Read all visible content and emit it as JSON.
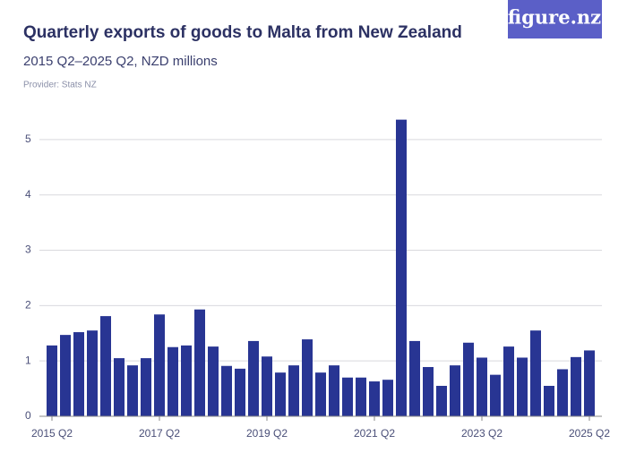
{
  "logo": "figure.nz",
  "chart_data": {
    "type": "bar",
    "title": "Quarterly exports of goods to Malta from New Zealand",
    "subtitle": "2015 Q2–2025 Q2, NZD millions",
    "provider": "Provider: Stats NZ",
    "color": "#283593",
    "grid": true,
    "ylim": [
      0,
      5.5
    ],
    "yticks": [
      0,
      1,
      2,
      3,
      4,
      5
    ],
    "categories": [
      "2015 Q2",
      null,
      null,
      null,
      null,
      null,
      null,
      null,
      "2017 Q2",
      null,
      null,
      null,
      null,
      null,
      null,
      null,
      "2019 Q2",
      null,
      null,
      null,
      null,
      null,
      null,
      null,
      "2021 Q2",
      null,
      null,
      null,
      null,
      null,
      null,
      null,
      "2023 Q2",
      null,
      null,
      null,
      null,
      null,
      null,
      null,
      "2025 Q2"
    ],
    "values": [
      1.28,
      1.47,
      1.52,
      1.55,
      1.81,
      1.05,
      0.92,
      1.05,
      1.84,
      1.25,
      1.28,
      1.93,
      1.26,
      0.91,
      0.86,
      1.36,
      1.08,
      0.79,
      0.92,
      1.39,
      0.79,
      0.92,
      0.7,
      0.7,
      0.63,
      0.66,
      5.36,
      1.36,
      0.89,
      0.55,
      0.92,
      1.33,
      1.06,
      0.75,
      1.26,
      1.06,
      1.55,
      0.55,
      0.85,
      1.07,
      1.19
    ]
  }
}
